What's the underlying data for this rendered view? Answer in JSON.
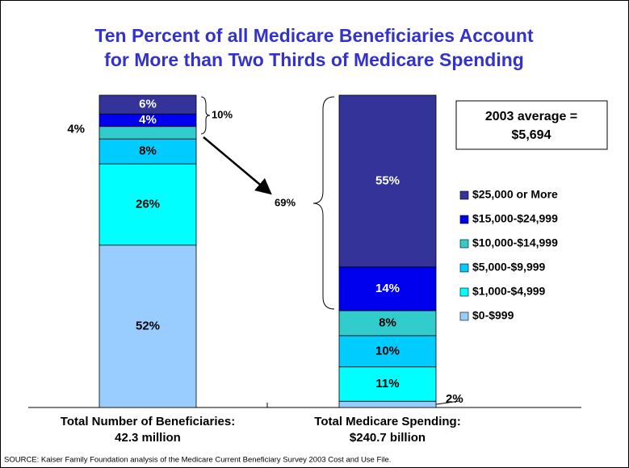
{
  "chart_data": {
    "type": "stacked_bar",
    "title": [
      "Ten Percent of all Medicare Beneficiaries Account",
      "for More than Two Thirds of Medicare Spending"
    ],
    "categories": [
      "Total Number of Beneficiaries:",
      "Total Medicare Spending:"
    ],
    "category_sublabels": [
      "42.3 million",
      "$240.7 billion"
    ],
    "ylim": [
      0,
      100
    ],
    "series": [
      {
        "name": "$0-$999",
        "color": "#99ccff",
        "values": [
          52,
          2
        ],
        "value_labels": [
          "52%",
          "2%"
        ]
      },
      {
        "name": "$1,000-$4,999",
        "color": "#00ffff",
        "values": [
          26,
          11
        ],
        "value_labels": [
          "26%",
          "11%"
        ]
      },
      {
        "name": "$5,000-$9,999",
        "color": "#00ccff",
        "values": [
          8,
          10
        ],
        "value_labels": [
          "8%",
          "10%"
        ]
      },
      {
        "name": "$10,000-$14,999",
        "color": "#33cccc",
        "values": [
          4,
          8
        ],
        "value_labels": [
          "4%",
          "8%"
        ]
      },
      {
        "name": "$15,000-$24,999",
        "color": "#0000ee",
        "values": [
          4,
          14
        ],
        "value_labels": [
          "4%",
          "14%"
        ]
      },
      {
        "name": "$25,000 or More",
        "color": "#333399",
        "values": [
          6,
          55
        ],
        "value_labels": [
          "6%",
          "55%"
        ]
      }
    ],
    "annotations": {
      "top_share": "10%",
      "spending_share": "69%",
      "average": [
        "2003 average =",
        "$5,694"
      ]
    },
    "source": "SOURCE: Kaiser Family Foundation analysis of the Medicare Current Beneficiary Survey 2003 Cost and Use File."
  }
}
